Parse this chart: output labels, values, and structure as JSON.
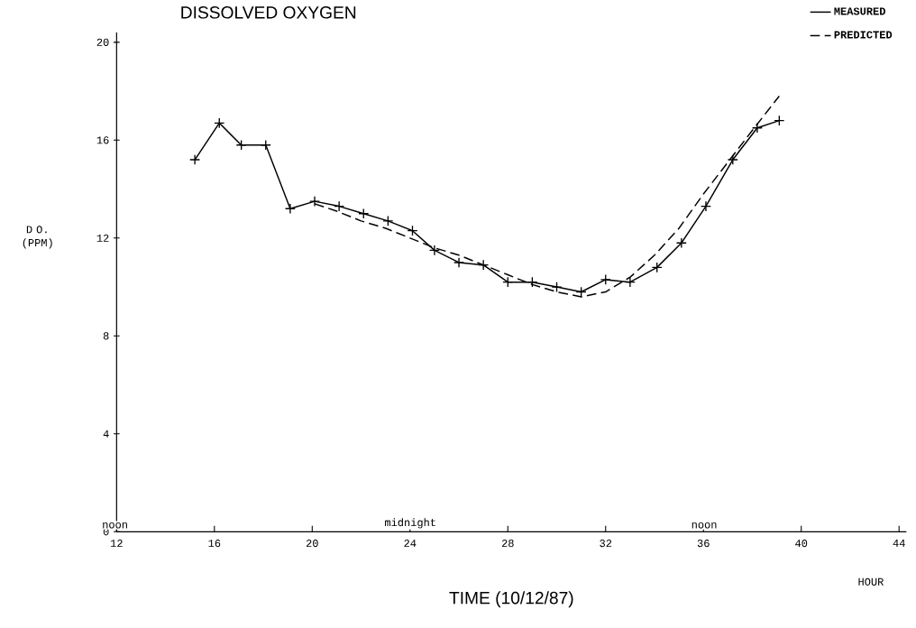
{
  "chart_data": {
    "type": "line",
    "title": "DISSOLVED OXYGEN",
    "xlabel": "TIME  (10/12/87)",
    "ylabel": "D O. (PPM)",
    "xlim": [
      12,
      44.3
    ],
    "ylim": [
      0,
      20.4
    ],
    "xticks": [
      12,
      16,
      20,
      24,
      28,
      32,
      36,
      40,
      44
    ],
    "yticks": [
      0,
      4,
      8,
      12,
      16,
      20
    ],
    "marker": "cross",
    "line_style": "solid",
    "legend": "top right",
    "grid": false,
    "series": [
      {
        "name": "MEASURED",
        "color": "#000000",
        "x": [
          15.2,
          16.2,
          17.1,
          18.1,
          19.1,
          20.1,
          21.1,
          22.1,
          23.1,
          24.1,
          25.0,
          26.0,
          27.0,
          28.0,
          29.0,
          30.0,
          31.0,
          32.0,
          33.0,
          34.1,
          35.1,
          36.1,
          37.2,
          38.2,
          39.1
        ],
        "values": [
          15.2,
          16.7,
          15.8,
          15.8,
          13.2,
          13.5,
          13.3,
          13.0,
          12.7,
          12.3,
          11.5,
          11.0,
          10.9,
          10.2,
          10.2,
          10.0,
          9.8,
          10.3,
          10.2,
          10.8,
          11.8,
          13.3,
          15.2,
          16.5,
          16.8
        ]
      },
      {
        "name": "PREDICTED",
        "color": "#000000",
        "marker": "none",
        "line_style": "dashed",
        "x": [
          20.1,
          21,
          22,
          23,
          24,
          25,
          26,
          27,
          28,
          29,
          30,
          31,
          32,
          33,
          34,
          35,
          36,
          37,
          38,
          39.1
        ],
        "values": [
          13.4,
          13.1,
          12.7,
          12.4,
          12.0,
          11.6,
          11.3,
          10.9,
          10.5,
          10.1,
          9.8,
          9.6,
          9.8,
          10.4,
          11.3,
          12.4,
          13.8,
          15.1,
          16.4,
          17.8
        ]
      }
    ],
    "annotations": [
      "noon",
      "midnight",
      "noon",
      "HOUR"
    ]
  }
}
